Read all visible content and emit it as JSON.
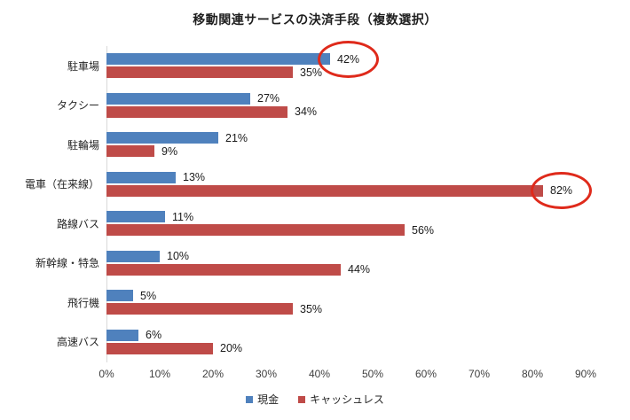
{
  "title": "移動関連サービスの決済手段（複数選択）",
  "chart_data": {
    "type": "bar",
    "orientation": "horizontal",
    "title": "移動関連サービスの決済手段（複数選択）",
    "categories": [
      "駐車場",
      "タクシー",
      "駐輪場",
      "電車（在来線）",
      "路線バス",
      "新幹線・特急",
      "飛行機",
      "高速バス"
    ],
    "series": [
      {
        "name": "現金",
        "color": "#4F81BD",
        "values": [
          42,
          27,
          21,
          13,
          11,
          10,
          5,
          6
        ]
      },
      {
        "name": "キャッシュレス",
        "color": "#BF4B48",
        "values": [
          35,
          34,
          9,
          82,
          56,
          44,
          35,
          20
        ]
      }
    ],
    "value_suffix": "%",
    "xlim": [
      0,
      90
    ],
    "x_ticks": [
      "0%",
      "10%",
      "20%",
      "30%",
      "40%",
      "50%",
      "60%",
      "70%",
      "80%",
      "90%"
    ],
    "grid": false,
    "legend_position": "bottom",
    "axis_color": "#d9d9d9",
    "annotations": [
      {
        "type": "ellipse",
        "color": "#df2a1b",
        "category_index": 0,
        "series_index": 0,
        "label": "42%"
      },
      {
        "type": "ellipse",
        "color": "#df2a1b",
        "category_index": 3,
        "series_index": 1,
        "label": "82%"
      }
    ]
  }
}
